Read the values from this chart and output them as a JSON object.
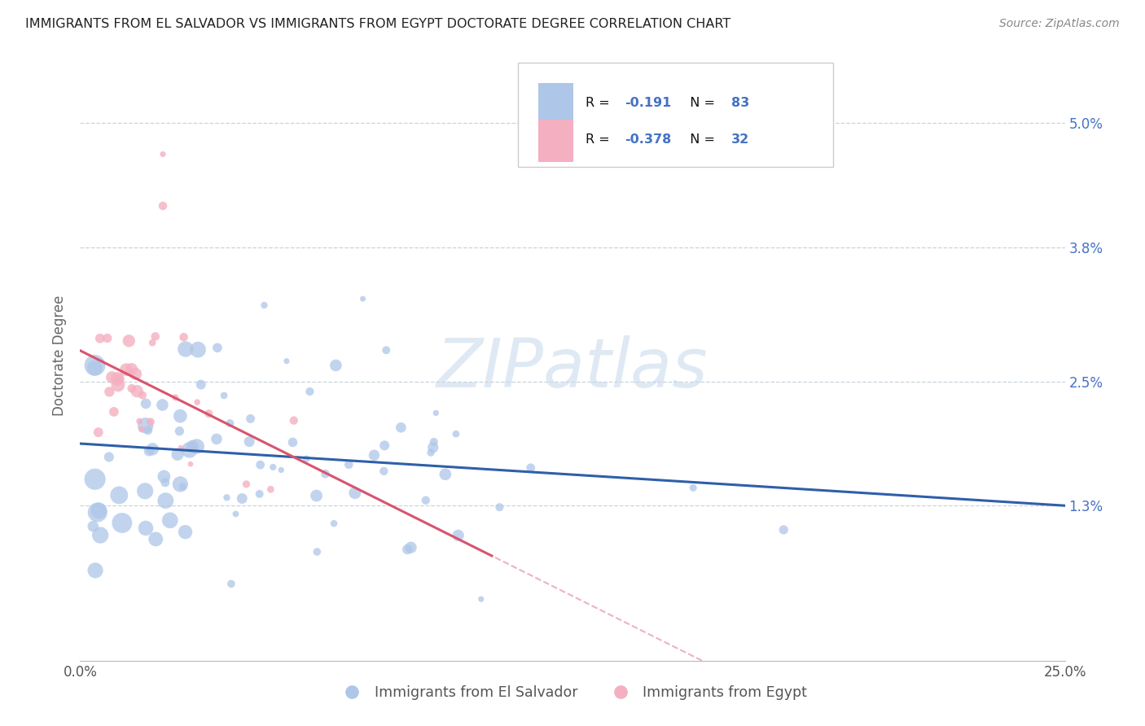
{
  "title": "IMMIGRANTS FROM EL SALVADOR VS IMMIGRANTS FROM EGYPT DOCTORATE DEGREE CORRELATION CHART",
  "source": "Source: ZipAtlas.com",
  "ylabel": "Doctorate Degree",
  "x_min": 0.0,
  "x_max": 0.25,
  "y_min": -0.002,
  "y_max": 0.057,
  "y_ticks": [
    0.013,
    0.025,
    0.038,
    0.05
  ],
  "y_tick_labels": [
    "1.3%",
    "2.5%",
    "3.8%",
    "5.0%"
  ],
  "x_tick_labels": [
    "0.0%",
    "25.0%"
  ],
  "el_salvador_color": "#aec6e8",
  "egypt_color": "#f4afc0",
  "el_salvador_line_color": "#2e5faa",
  "egypt_line_color": "#d9546e",
  "watermark": "ZIPatlas",
  "background_color": "#ffffff",
  "grid_color": "#c8d4de",
  "axis_label_color": "#666666",
  "right_tick_color": "#4472c4",
  "legend_r1": "-0.191",
  "legend_n1": "83",
  "legend_r2": "-0.378",
  "legend_n2": "32",
  "legend_text_color": "#1a1a1a",
  "legend_value_color": "#4472c4"
}
